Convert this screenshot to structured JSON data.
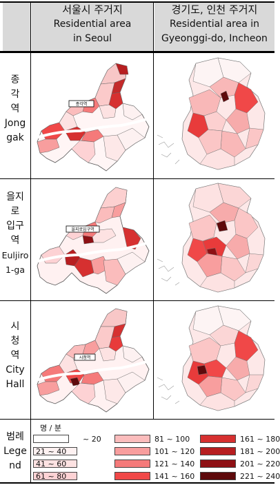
{
  "header": {
    "seoul_ko": "서울시 주거지",
    "seoul_en1": "Residential area",
    "seoul_en2": "in Seoul",
    "gyeonggi_ko": "경기도, 인천 주거지",
    "gyeonggi_en1": "Residential area in",
    "gyeonggi_en2": "Gyeonggi-do, Incheon"
  },
  "rows": [
    {
      "label_lines": [
        "종",
        "각",
        "역",
        "Jong",
        "gak"
      ],
      "station_tag": "종각역"
    },
    {
      "label_lines": [
        "을지",
        "로",
        "입구",
        "역",
        "Euljiro",
        "1-ga"
      ],
      "station_tag": "을지로입구역"
    },
    {
      "label_lines": [
        "시",
        "청",
        "역",
        "City",
        "Hall"
      ],
      "station_tag": "시청역"
    }
  ],
  "legend": {
    "label_lines": [
      "범례",
      "Lege",
      "nd"
    ],
    "unit": "명 / 분",
    "classes": [
      {
        "range": "~ 20",
        "color": "#ffffff"
      },
      {
        "range": "21 ~ 40",
        "color": "#fdf1f1"
      },
      {
        "range": "41 ~ 60",
        "color": "#fde2e2"
      },
      {
        "range": "61 ~ 80",
        "color": "#fdd2d4"
      },
      {
        "range": "81 ~ 100",
        "color": "#fbbcbc"
      },
      {
        "range": "101 ~ 120",
        "color": "#f89e9e"
      },
      {
        "range": "121 ~ 140",
        "color": "#f57a7a"
      },
      {
        "range": "141 ~ 160",
        "color": "#f04848"
      },
      {
        "range": "161 ~ 180",
        "color": "#d63030"
      },
      {
        "range": "181 ~ 200",
        "color": "#b71e20"
      },
      {
        "range": "201 ~ 220",
        "color": "#8e1014"
      },
      {
        "range": "221 ~ 240",
        "color": "#5e0a0c"
      }
    ]
  }
}
